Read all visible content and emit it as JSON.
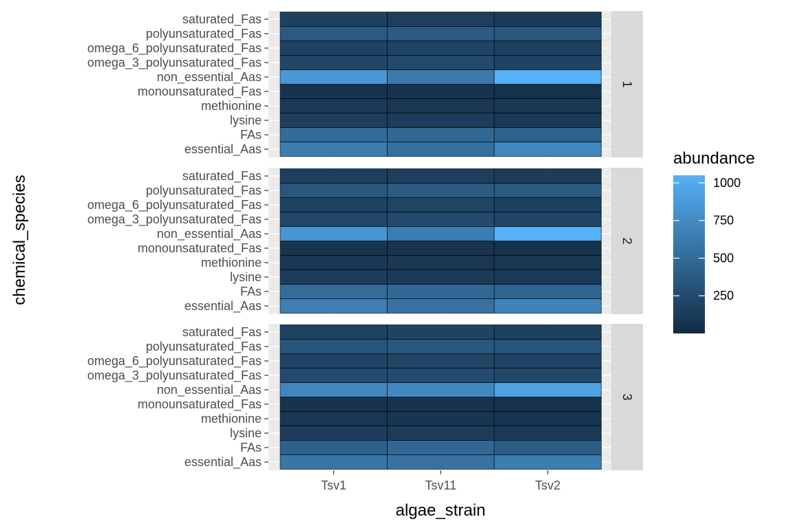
{
  "chart_data": {
    "type": "heatmap",
    "xlabel": "algae_strain",
    "ylabel": "chemical_species",
    "x_categories": [
      "Tsv1",
      "Tsv11",
      "Tsv2"
    ],
    "y_categories": [
      "essential_Aas",
      "FAs",
      "lysine",
      "methionine",
      "monounsaturated_Fas",
      "non_essential_Aas",
      "omega_3_polyunsaturated_Fas",
      "omega_6_polyunsaturated_Fas",
      "polyunsaturated_Fas",
      "saturated_Fas"
    ],
    "legend": {
      "title": "abundance",
      "range": [
        0,
        1050
      ],
      "breaks": [
        250,
        500,
        750,
        1000
      ],
      "low_color": "#132B43",
      "high_color": "#56B1F7",
      "placement": "right"
    },
    "facets": [
      {
        "label": "1",
        "values": {
          "essential_Aas": [
            640,
            530,
            720
          ],
          "FAs": [
            500,
            470,
            420
          ],
          "lysine": [
            150,
            140,
            120
          ],
          "methionine": [
            110,
            95,
            100
          ],
          "monounsaturated_Fas": [
            70,
            60,
            50
          ],
          "non_essential_Aas": [
            850,
            620,
            1050
          ],
          "omega_3_polyunsaturated_Fas": [
            210,
            240,
            190
          ],
          "omega_6_polyunsaturated_Fas": [
            180,
            190,
            170
          ],
          "polyunsaturated_Fas": [
            360,
            370,
            340
          ],
          "saturated_Fas": [
            170,
            150,
            130
          ]
        }
      },
      {
        "label": "2",
        "values": {
          "essential_Aas": [
            660,
            560,
            690
          ],
          "FAs": [
            510,
            480,
            450
          ],
          "lysine": [
            140,
            130,
            115
          ],
          "methionine": [
            105,
            90,
            95
          ],
          "monounsaturated_Fas": [
            70,
            60,
            55
          ],
          "non_essential_Aas": [
            830,
            640,
            1050
          ],
          "omega_3_polyunsaturated_Fas": [
            220,
            250,
            200
          ],
          "omega_6_polyunsaturated_Fas": [
            180,
            195,
            175
          ],
          "polyunsaturated_Fas": [
            340,
            380,
            360
          ],
          "saturated_Fas": [
            160,
            150,
            135
          ]
        }
      },
      {
        "label": "3",
        "values": {
          "essential_Aas": [
            590,
            560,
            650
          ],
          "FAs": [
            420,
            470,
            400
          ],
          "lysine": [
            150,
            135,
            125
          ],
          "methionine": [
            90,
            85,
            80
          ],
          "monounsaturated_Fas": [
            65,
            60,
            55
          ],
          "non_essential_Aas": [
            720,
            740,
            930
          ],
          "omega_3_polyunsaturated_Fas": [
            250,
            260,
            230
          ],
          "omega_6_polyunsaturated_Fas": [
            190,
            200,
            185
          ],
          "polyunsaturated_Fas": [
            330,
            350,
            320
          ],
          "saturated_Fas": [
            180,
            190,
            170
          ]
        }
      }
    ]
  }
}
